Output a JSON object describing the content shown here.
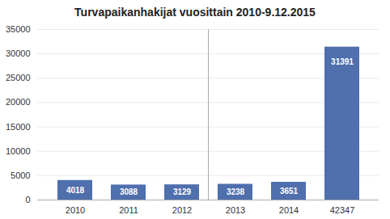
{
  "chart_data": {
    "type": "bar",
    "title": "Turvapaikanhakijat vuosittain 2010-9.12.2015",
    "categories": [
      "2010",
      "2011",
      "2012",
      "2013",
      "2014",
      "42347"
    ],
    "values": [
      4018,
      3088,
      3129,
      3238,
      3651,
      31391
    ],
    "color": "#4f6fad",
    "ylim": [
      0,
      35000
    ],
    "yticks": [
      0,
      5000,
      10000,
      15000,
      20000,
      25000,
      30000,
      35000
    ],
    "grid": true,
    "data_labels": true
  }
}
